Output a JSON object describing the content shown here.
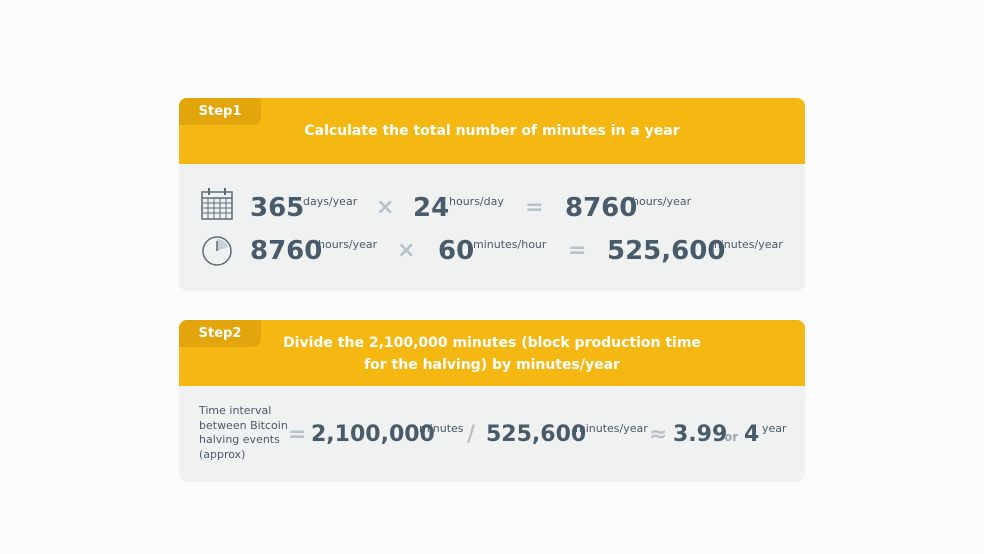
{
  "step1": {
    "label": "Step1",
    "title": "Calculate the total number of minutes in a year",
    "rows": [
      {
        "a": "365",
        "a_unit": "days/year",
        "op": "×",
        "b": "24",
        "b_unit": "hours/day",
        "eq": "=",
        "result": "8760",
        "result_unit": "hours/year"
      },
      {
        "a": "8760",
        "a_unit": "hours/year",
        "op": "×",
        "b": "60",
        "b_unit": "minutes/hour",
        "eq": "=",
        "result": "525,600",
        "result_unit": "minutes/year"
      }
    ]
  },
  "step2": {
    "label": "Step2",
    "title_lines": [
      "Divide the 2,100,000 minutes (block production time",
      "for the halving) by minutes/year"
    ],
    "description_lines": [
      "Time interval",
      "between Bitcoin",
      "halving events",
      "(approx)"
    ],
    "eq": "=",
    "dividend": "2,100,000",
    "dividend_unit": "minutes",
    "op": "/",
    "divisor": "525,600",
    "divisor_unit": "minutes/year",
    "approx": "≈",
    "result": "3.99",
    "or": "or",
    "rounded": "4",
    "rounded_unit": "year"
  }
}
